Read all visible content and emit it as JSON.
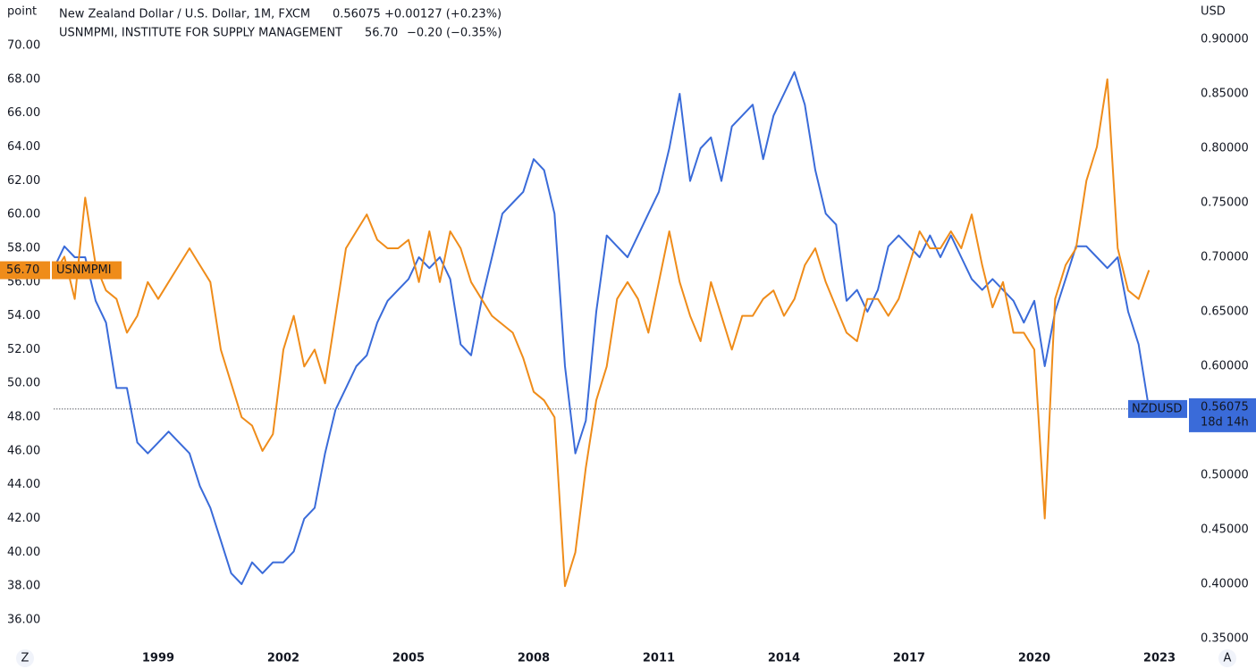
{
  "chart_data": {
    "type": "line",
    "left_unit": "point",
    "right_unit": "USD",
    "corner_left": "Z",
    "corner_right": "A",
    "categories": [
      null,
      null,
      null,
      null,
      null,
      null,
      null,
      null,
      null,
      null,
      "1999",
      null,
      null,
      null,
      null,
      null,
      null,
      null,
      null,
      null,
      null,
      null,
      "2002",
      null,
      null,
      null,
      null,
      null,
      null,
      null,
      null,
      null,
      null,
      null,
      "2005",
      null,
      null,
      null,
      null,
      null,
      null,
      null,
      null,
      null,
      null,
      null,
      "2008",
      null,
      null,
      null,
      null,
      null,
      null,
      null,
      null,
      null,
      null,
      null,
      "2011",
      null,
      null,
      null,
      null,
      null,
      null,
      null,
      null,
      null,
      null,
      null,
      "2014",
      null,
      null,
      null,
      null,
      null,
      null,
      null,
      null,
      null,
      null,
      null,
      "2017",
      null,
      null,
      null,
      null,
      null,
      null,
      null,
      null,
      null,
      null,
      null,
      "2020",
      null,
      null,
      null,
      null,
      null,
      null,
      null,
      null,
      null,
      null,
      null,
      "2023"
    ],
    "series": [
      {
        "name": "New Zealand Dollar / U.S. Dollar, 1M, FXCM",
        "symbol": "NZDUSD",
        "last": "0.56075",
        "change": "+0.00127 (+0.23%)",
        "countdown": "18d 14h",
        "color": "#3a6bd9",
        "axis": "y2",
        "values": [
          0.69,
          0.71,
          0.7,
          0.7,
          0.66,
          0.64,
          0.58,
          0.58,
          0.53,
          0.52,
          0.53,
          0.54,
          0.53,
          0.52,
          0.49,
          0.47,
          0.44,
          0.41,
          0.4,
          0.42,
          0.41,
          0.42,
          0.42,
          0.43,
          0.46,
          0.47,
          0.52,
          0.56,
          0.58,
          0.6,
          0.61,
          0.64,
          0.66,
          0.67,
          0.68,
          0.7,
          0.69,
          0.7,
          0.68,
          0.62,
          0.61,
          0.66,
          0.7,
          0.74,
          0.75,
          0.76,
          0.79,
          0.78,
          0.74,
          0.6,
          0.52,
          0.55,
          0.65,
          0.72,
          0.71,
          0.7,
          0.72,
          0.74,
          0.76,
          0.8,
          0.85,
          0.77,
          0.8,
          0.81,
          0.77,
          0.82,
          0.83,
          0.84,
          0.79,
          0.83,
          0.85,
          0.87,
          0.84,
          0.78,
          0.74,
          0.73,
          0.66,
          0.67,
          0.65,
          0.67,
          0.71,
          0.72,
          0.71,
          0.7,
          0.72,
          0.7,
          0.72,
          0.7,
          0.68,
          0.67,
          0.68,
          0.67,
          0.66,
          0.64,
          0.66,
          0.6,
          0.65,
          0.68,
          0.71,
          0.71,
          0.7,
          0.69,
          0.7,
          0.65,
          0.62,
          0.56075,
          null
        ]
      },
      {
        "name": "USNMPMI, INSTITUTE FOR SUPPLY MANAGEMENT",
        "symbol": "USNMPMI",
        "last": "56.70",
        "change": "−0.20 (−0.35%)",
        "color": "#ef8c1a",
        "axis": "y",
        "values": [
          56.5,
          57.5,
          55.0,
          61.0,
          57.0,
          55.5,
          55.0,
          53.0,
          54.0,
          56.0,
          55.0,
          56.0,
          57.0,
          58.0,
          57.0,
          56.0,
          52.0,
          50.0,
          48.0,
          47.5,
          46.0,
          47.0,
          52.0,
          54.0,
          51.0,
          52.0,
          50.0,
          54.0,
          58.0,
          59.0,
          60.0,
          58.5,
          58.0,
          58.0,
          58.5,
          56.0,
          59.0,
          56.0,
          59.0,
          58.0,
          56.0,
          55.0,
          54.0,
          53.5,
          53.0,
          51.5,
          49.5,
          49.0,
          48.0,
          38.0,
          40.0,
          45.0,
          49.0,
          51.0,
          55.0,
          56.0,
          55.0,
          53.0,
          56.0,
          59.0,
          56.0,
          54.0,
          52.5,
          56.0,
          54.0,
          52.0,
          54.0,
          54.0,
          55.0,
          55.5,
          54.0,
          55.0,
          57.0,
          58.0,
          56.0,
          54.5,
          53.0,
          52.5,
          55.0,
          55.0,
          54.0,
          55.0,
          57.0,
          59.0,
          58.0,
          58.0,
          59.0,
          58.0,
          60.0,
          57.0,
          54.5,
          56.0,
          53.0,
          53.0,
          52.0,
          42.0,
          55.0,
          57.0,
          58.0,
          62.0,
          64.0,
          68.0,
          58.0,
          55.5,
          55.0,
          56.7,
          null
        ]
      }
    ],
    "ylim": [
      34.89,
      71.64
    ],
    "yticks": [
      {
        "value": 36,
        "label": "36.00"
      },
      {
        "value": 38,
        "label": "38.00"
      },
      {
        "value": 40,
        "label": "40.00"
      },
      {
        "value": 42,
        "label": "42.00"
      },
      {
        "value": 44,
        "label": "44.00"
      },
      {
        "value": 46,
        "label": "46.00"
      },
      {
        "value": 48,
        "label": "48.00"
      },
      {
        "value": 50,
        "label": "50.00"
      },
      {
        "value": 52,
        "label": "52.00"
      },
      {
        "value": 54,
        "label": "54.00"
      },
      {
        "value": 56,
        "label": "56.00"
      },
      {
        "value": 58,
        "label": "58.00"
      },
      {
        "value": 60,
        "label": "60.00"
      },
      {
        "value": 62,
        "label": "62.00"
      },
      {
        "value": 64,
        "label": "64.00"
      },
      {
        "value": 66,
        "label": "66.00"
      },
      {
        "value": 68,
        "label": "68.00"
      },
      {
        "value": 70,
        "label": "70.00"
      }
    ],
    "y2lim": [
      0.35,
      0.9197
    ],
    "y2ticks": [
      {
        "value": 0.35,
        "label": "0.35000"
      },
      {
        "value": 0.4,
        "label": "0.40000"
      },
      {
        "value": 0.45,
        "label": "0.45000"
      },
      {
        "value": 0.5,
        "label": "0.50000"
      },
      {
        "value": 0.55,
        "label": "0.55000"
      },
      {
        "value": 0.6,
        "label": "0.60000"
      },
      {
        "value": 0.65,
        "label": "0.65000"
      },
      {
        "value": 0.7,
        "label": "0.70000"
      },
      {
        "value": 0.75,
        "label": "0.75000"
      },
      {
        "value": 0.8,
        "label": "0.80000"
      },
      {
        "value": 0.85,
        "label": "0.85000"
      },
      {
        "value": 0.9,
        "label": "0.90000"
      }
    ]
  }
}
